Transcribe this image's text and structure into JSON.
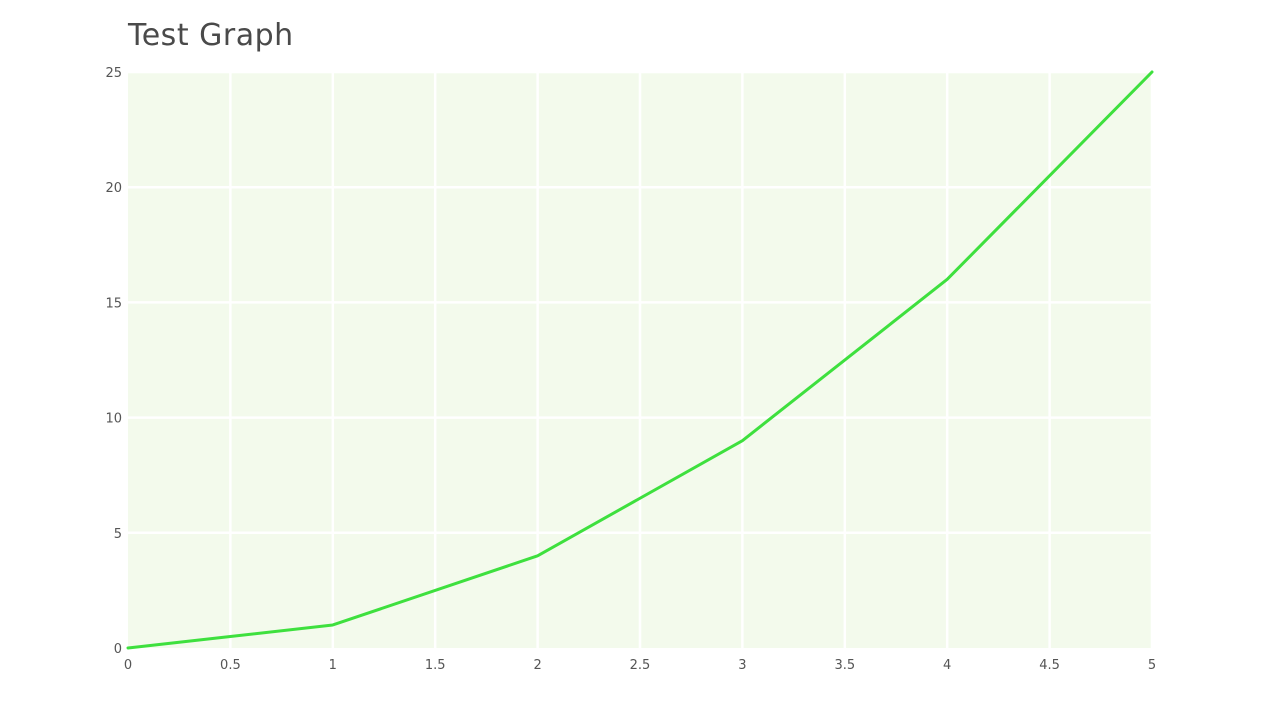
{
  "chart_data": {
    "type": "line",
    "title": "Test Graph",
    "xlabel": "",
    "ylabel": "",
    "x": [
      0,
      1,
      2,
      3,
      4,
      5
    ],
    "series": [
      {
        "values": [
          0,
          1,
          4,
          9,
          16,
          25
        ]
      }
    ],
    "xlim": [
      0,
      5
    ],
    "ylim": [
      0,
      25
    ],
    "x_ticks": [
      "0",
      "0.5",
      "1",
      "1.5",
      "2",
      "2.5",
      "3",
      "3.5",
      "4",
      "4.5",
      "5"
    ],
    "y_ticks": [
      "0",
      "5",
      "10",
      "15",
      "20",
      "25"
    ],
    "grid": true,
    "legend": "none"
  },
  "colors": {
    "line": "#3ee03e",
    "plot_background": "#f3faec",
    "grid": "#ffffff",
    "text": "#555555",
    "title": "#4a4a4a"
  }
}
